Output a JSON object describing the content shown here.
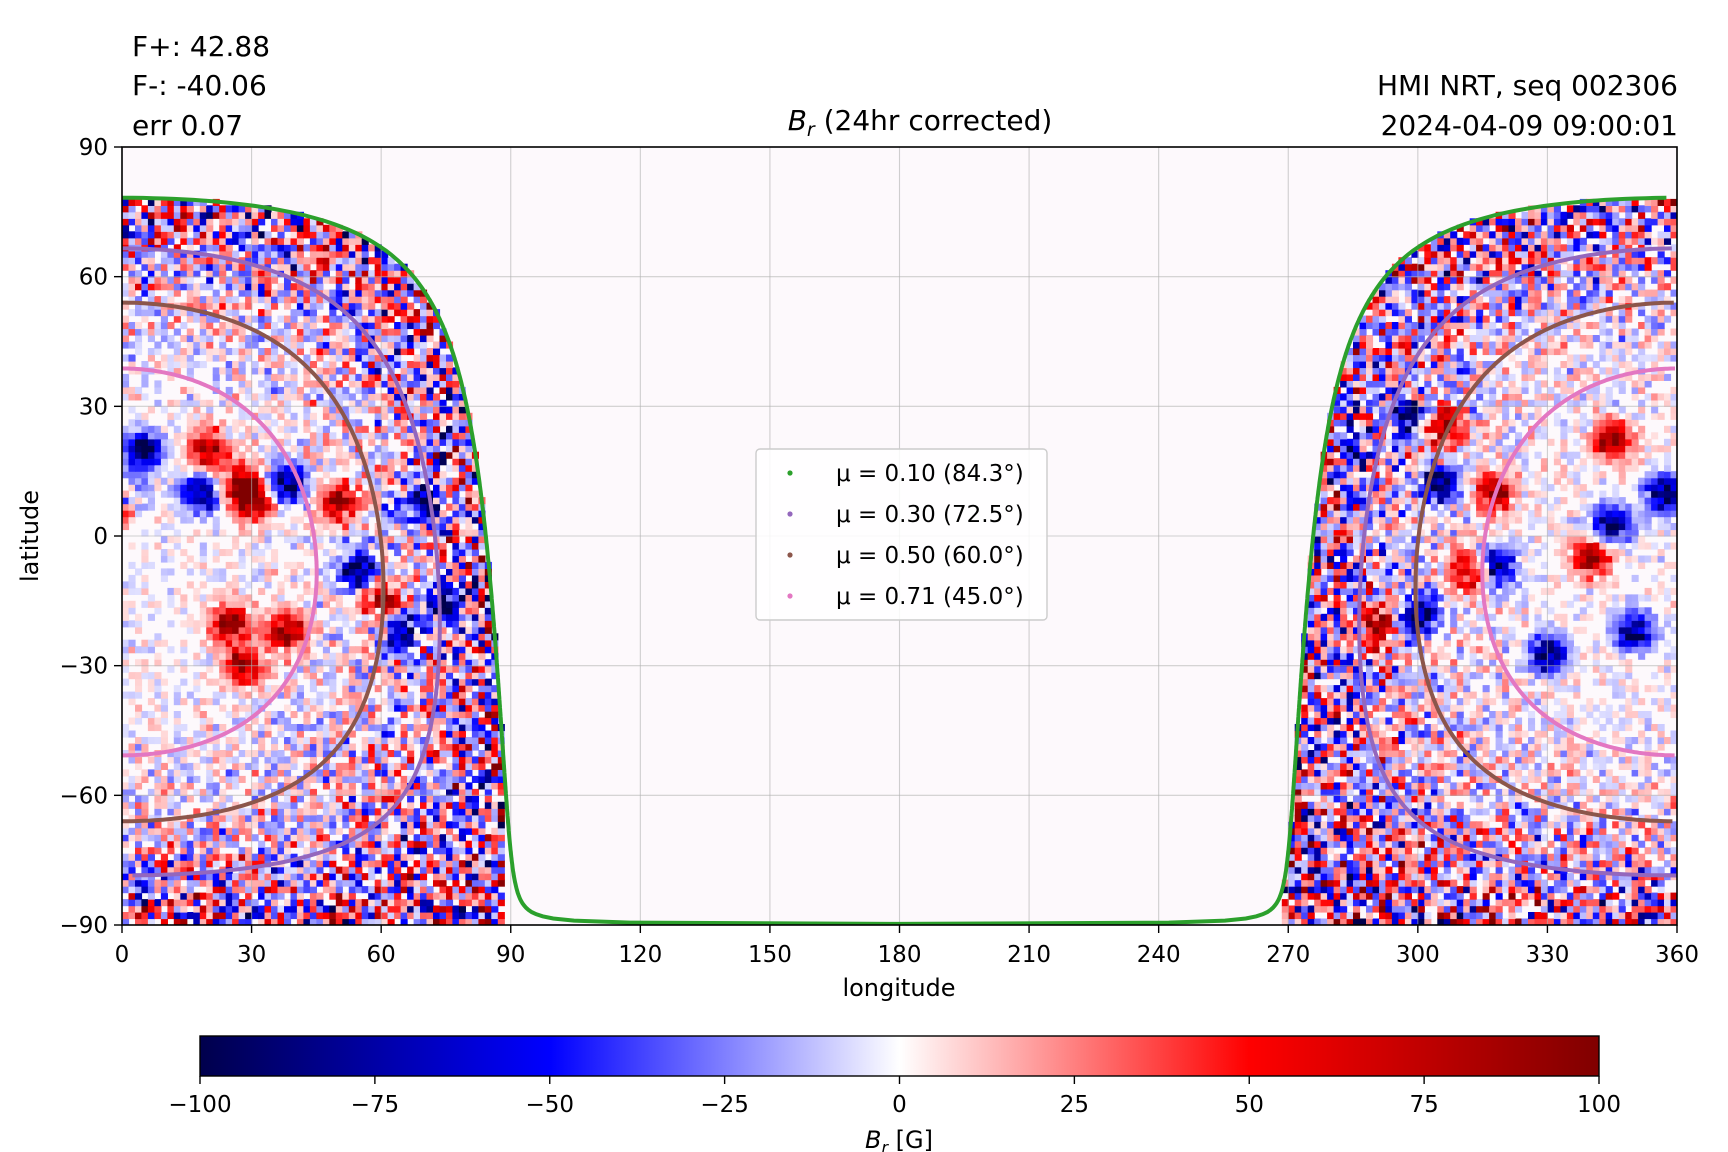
{
  "annotations": {
    "flux_pos": "F+: 42.88",
    "flux_neg": "F-: -40.06",
    "error": "err 0.07",
    "instrument": "HMI NRT, seq 002306",
    "timestamp": "2024-04-09 09:00:01"
  },
  "chart_data": {
    "type": "heatmap",
    "title_main": "B",
    "title_sub": "r",
    "title_rest": " (24hr corrected)",
    "xlabel": "longitude",
    "ylabel": "latitude",
    "xlim": [
      0,
      360
    ],
    "ylim": [
      -90,
      90
    ],
    "xticks": [
      0,
      30,
      60,
      90,
      120,
      150,
      180,
      210,
      240,
      270,
      300,
      330,
      360
    ],
    "yticks": [
      -90,
      -60,
      -30,
      0,
      30,
      60,
      90
    ],
    "ytick_labels": [
      "−90",
      "−60",
      "−30",
      "0",
      "30",
      "60",
      "90"
    ],
    "grid": true,
    "observed_longitude_ranges": [
      [
        0,
        89
      ],
      [
        269,
        360
      ]
    ],
    "disk_center_longitude": 0,
    "disk_center_latitude": -6,
    "mu_contours": [
      {
        "mu": 0.1,
        "label": "μ = 0.10 (84.3°)",
        "color": "#2ca02c"
      },
      {
        "mu": 0.3,
        "label": "μ = 0.30 (72.5°)",
        "color": "#9467bd"
      },
      {
        "mu": 0.5,
        "label": "μ = 0.50 (60.0°)",
        "color": "#8c564b"
      },
      {
        "mu": 0.71,
        "label": "μ = 0.71 (45.0°)",
        "color": "#e377c2"
      }
    ],
    "legend_position": "center",
    "active_regions": [
      {
        "lon": 0,
        "lat": 8,
        "polarity": "+"
      },
      {
        "lon": 5,
        "lat": 20,
        "polarity": "-"
      },
      {
        "lon": 1,
        "lat": 9,
        "polarity": "-"
      },
      {
        "lon": 20,
        "lat": 20,
        "polarity": "+"
      },
      {
        "lon": 28,
        "lat": 12,
        "polarity": "+"
      },
      {
        "lon": 18,
        "lat": 10,
        "polarity": "-"
      },
      {
        "lon": 30,
        "lat": 8,
        "polarity": "+"
      },
      {
        "lon": 38,
        "lat": 12,
        "polarity": "-"
      },
      {
        "lon": 50,
        "lat": 8,
        "polarity": "+"
      },
      {
        "lon": 55,
        "lat": -8,
        "polarity": "-"
      },
      {
        "lon": 60,
        "lat": -15,
        "polarity": "+"
      },
      {
        "lon": 70,
        "lat": 8,
        "polarity": "-"
      },
      {
        "lon": 75,
        "lat": -15,
        "polarity": "-"
      },
      {
        "lon": 65,
        "lat": -22,
        "polarity": "-"
      },
      {
        "lon": 25,
        "lat": -20,
        "polarity": "+"
      },
      {
        "lon": 28,
        "lat": -30,
        "polarity": "+"
      },
      {
        "lon": 38,
        "lat": -22,
        "polarity": "+"
      },
      {
        "lon": 278,
        "lat": 20,
        "polarity": "+"
      },
      {
        "lon": 284,
        "lat": 20,
        "polarity": "-"
      },
      {
        "lon": 298,
        "lat": 28,
        "polarity": "-"
      },
      {
        "lon": 306,
        "lat": 25,
        "polarity": "+"
      },
      {
        "lon": 318,
        "lat": 10,
        "polarity": "+"
      },
      {
        "lon": 305,
        "lat": 12,
        "polarity": "-"
      },
      {
        "lon": 312,
        "lat": -8,
        "polarity": "+"
      },
      {
        "lon": 318,
        "lat": -7,
        "polarity": "-"
      },
      {
        "lon": 300,
        "lat": -18,
        "polarity": "-"
      },
      {
        "lon": 290,
        "lat": -20,
        "polarity": "+"
      },
      {
        "lon": 345,
        "lat": 3,
        "polarity": "-"
      },
      {
        "lon": 357,
        "lat": 10,
        "polarity": "-"
      },
      {
        "lon": 345,
        "lat": 22,
        "polarity": "+"
      },
      {
        "lon": 350,
        "lat": -22,
        "polarity": "-"
      },
      {
        "lon": 330,
        "lat": -27,
        "polarity": "-"
      },
      {
        "lon": 340,
        "lat": -5,
        "polarity": "+"
      }
    ],
    "colorbar": {
      "label_main": "B",
      "label_sub": "r",
      "label_rest": " [G]",
      "vmin": -100,
      "vmax": 100,
      "ticks": [
        -100,
        -75,
        -50,
        -25,
        0,
        25,
        50,
        75,
        100
      ],
      "tick_labels": [
        "−100",
        "−75",
        "−50",
        "−25",
        "0",
        "25",
        "50",
        "75",
        "100"
      ],
      "colormap": "seismic",
      "stops": [
        "#00004c",
        "#0000ff",
        "#ffffff",
        "#ff0000",
        "#800000"
      ]
    }
  }
}
